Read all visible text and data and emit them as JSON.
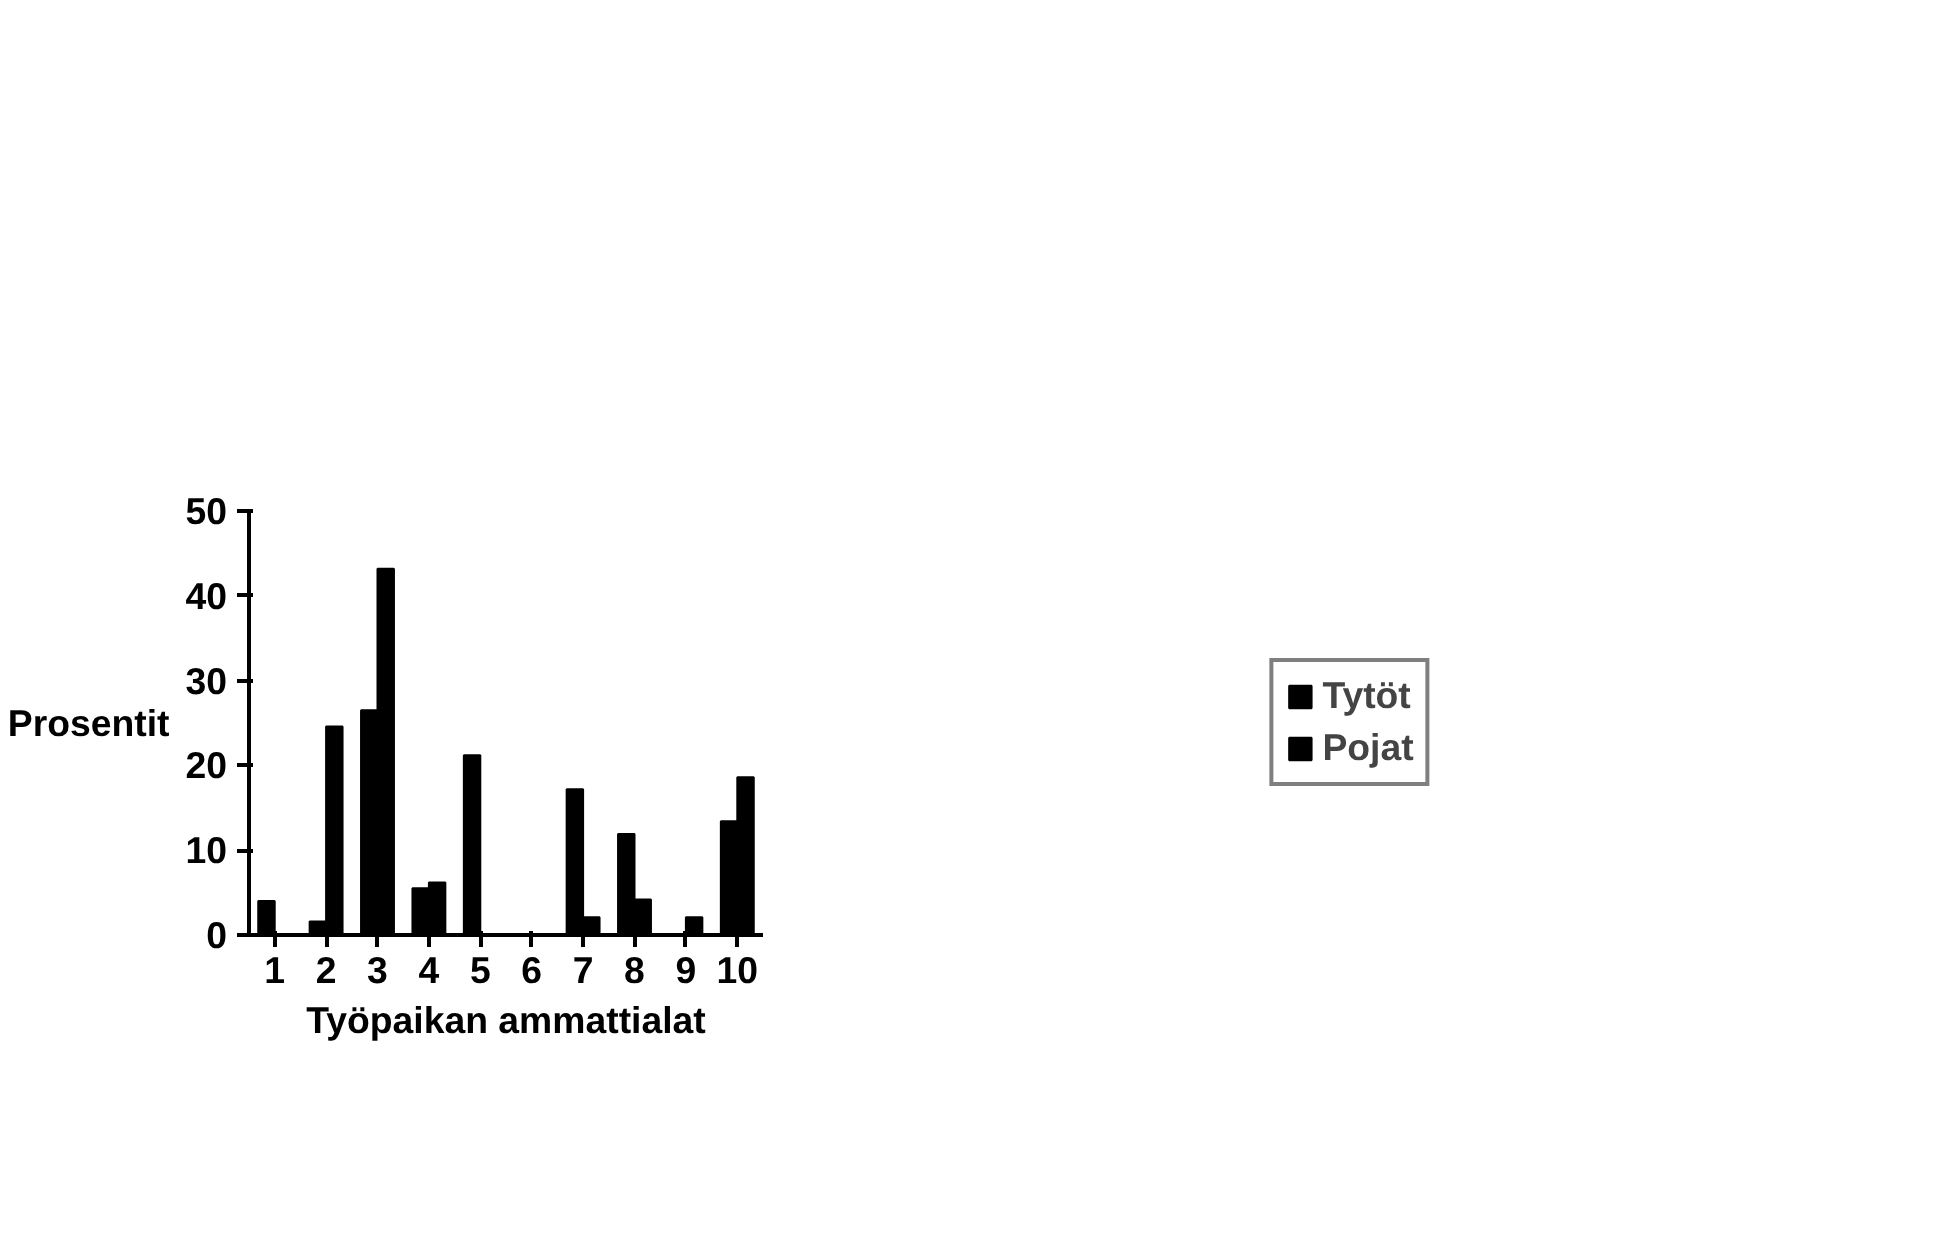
{
  "chart_data": {
    "type": "bar",
    "xlabel": "Työpaikan ammattialat",
    "ylabel": "Prosentit",
    "categories": [
      "1",
      "2",
      "3",
      "4",
      "5",
      "6",
      "7",
      "8",
      "9",
      "10"
    ],
    "series": [
      {
        "name": "Tytöt",
        "color": "#000000",
        "values": [
          4.0,
          1.6,
          26.5,
          5.5,
          21.2,
          0,
          17.2,
          11.9,
          0,
          13.4
        ]
      },
      {
        "name": "Pojat",
        "color": "#000000",
        "values": [
          0,
          24.6,
          43.2,
          6.2,
          0,
          0,
          2.1,
          4.2,
          2.1,
          18.6
        ]
      }
    ],
    "ylim": [
      0,
      50
    ],
    "yticks": [
      0,
      10,
      20,
      30,
      40,
      50
    ],
    "grid": false,
    "legend": "right"
  }
}
